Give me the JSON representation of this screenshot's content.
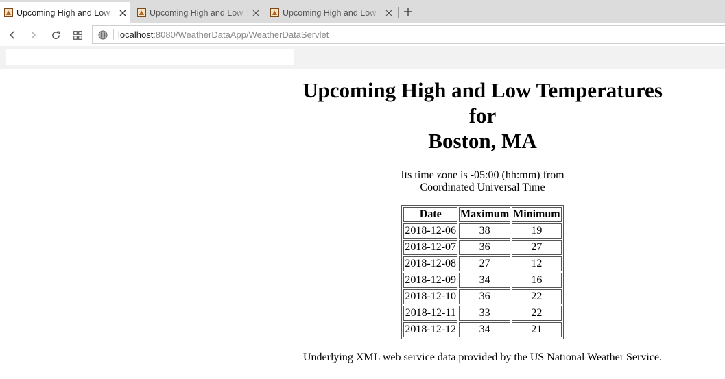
{
  "browser": {
    "tabs": [
      {
        "title": "Upcoming High and Low Temperatures",
        "active": true
      },
      {
        "title": "Upcoming High and Low Temperatures",
        "active": false
      },
      {
        "title": "Upcoming High and Low Temperatures",
        "active": false
      }
    ],
    "new_tab_icon": "plus-icon",
    "address": {
      "host": "localhost",
      "rest": ":8080/WeatherDataApp/WeatherDataServlet"
    },
    "icons": {
      "back": "back-arrow-icon",
      "forward": "forward-arrow-icon",
      "reload": "reload-icon",
      "apps": "apps-grid-icon",
      "site_info": "globe-icon",
      "favicon": "java-duke-favicon"
    }
  },
  "page": {
    "heading_line1": "Upcoming High and Low Temperatures",
    "heading_line2": "for",
    "heading_line3": "Boston, MA",
    "timezone_line1": "Its time zone is -05:00 (hh:mm) from",
    "timezone_line2": "Coordinated Universal Time",
    "table": {
      "headers": [
        "Date",
        "Maximum",
        "Minimum"
      ],
      "rows": [
        [
          "2018-12-06",
          "38",
          "19"
        ],
        [
          "2018-12-07",
          "36",
          "27"
        ],
        [
          "2018-12-08",
          "27",
          "12"
        ],
        [
          "2018-12-09",
          "34",
          "16"
        ],
        [
          "2018-12-10",
          "36",
          "22"
        ],
        [
          "2018-12-11",
          "33",
          "22"
        ],
        [
          "2018-12-12",
          "34",
          "21"
        ]
      ]
    },
    "footer": "Underlying XML web service data provided by the US National Weather Service."
  }
}
